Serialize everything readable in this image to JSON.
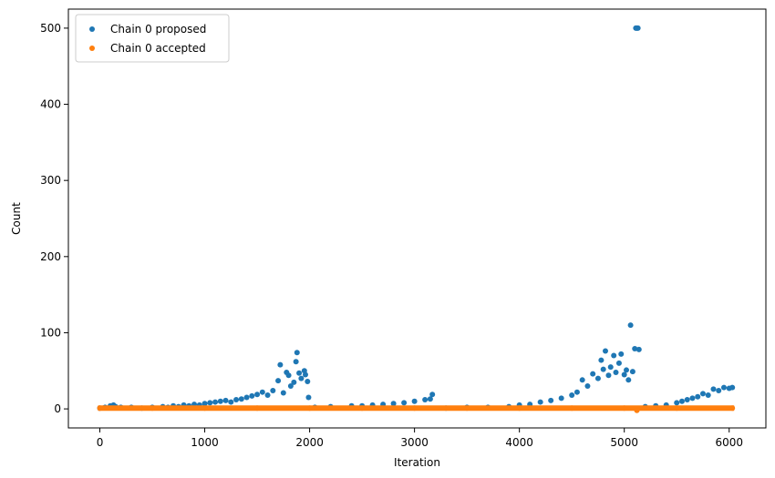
{
  "chart_data": {
    "type": "scatter",
    "xlabel": "Iteration",
    "ylabel": "Count",
    "xlim": [
      -300,
      6350
    ],
    "ylim": [
      -25,
      525
    ],
    "xticks": [
      0,
      1000,
      2000,
      3000,
      4000,
      5000,
      6000
    ],
    "yticks": [
      0,
      100,
      200,
      300,
      400,
      500
    ],
    "grid": false,
    "legend_position": "top-left",
    "series": [
      {
        "name": "Chain 0 proposed",
        "color": "#1f77b4",
        "points": [
          [
            0,
            1
          ],
          [
            50,
            2
          ],
          [
            100,
            4
          ],
          [
            130,
            5
          ],
          [
            150,
            3
          ],
          [
            200,
            2
          ],
          [
            300,
            2
          ],
          [
            400,
            1
          ],
          [
            500,
            2
          ],
          [
            600,
            3
          ],
          [
            650,
            2
          ],
          [
            700,
            4
          ],
          [
            750,
            3
          ],
          [
            800,
            5
          ],
          [
            850,
            4
          ],
          [
            900,
            6
          ],
          [
            950,
            5
          ],
          [
            1000,
            7
          ],
          [
            1050,
            8
          ],
          [
            1100,
            9
          ],
          [
            1150,
            10
          ],
          [
            1200,
            11
          ],
          [
            1250,
            9
          ],
          [
            1300,
            12
          ],
          [
            1350,
            13
          ],
          [
            1400,
            15
          ],
          [
            1450,
            17
          ],
          [
            1500,
            19
          ],
          [
            1550,
            22
          ],
          [
            1600,
            18
          ],
          [
            1650,
            24
          ],
          [
            1700,
            37
          ],
          [
            1720,
            58
          ],
          [
            1750,
            21
          ],
          [
            1780,
            48
          ],
          [
            1800,
            44
          ],
          [
            1820,
            30
          ],
          [
            1850,
            35
          ],
          [
            1870,
            62
          ],
          [
            1880,
            74
          ],
          [
            1900,
            47
          ],
          [
            1920,
            40
          ],
          [
            1950,
            50
          ],
          [
            1960,
            45
          ],
          [
            1980,
            36
          ],
          [
            1990,
            15
          ],
          [
            2050,
            2
          ],
          [
            2200,
            3
          ],
          [
            2400,
            4
          ],
          [
            2500,
            4
          ],
          [
            2600,
            5
          ],
          [
            2700,
            6
          ],
          [
            2800,
            7
          ],
          [
            2900,
            8
          ],
          [
            3000,
            10
          ],
          [
            3100,
            12
          ],
          [
            3150,
            13
          ],
          [
            3170,
            19
          ],
          [
            3300,
            1
          ],
          [
            3500,
            2
          ],
          [
            3700,
            2
          ],
          [
            3900,
            3
          ],
          [
            4000,
            5
          ],
          [
            4100,
            6
          ],
          [
            4200,
            9
          ],
          [
            4300,
            11
          ],
          [
            4400,
            14
          ],
          [
            4500,
            18
          ],
          [
            4550,
            22
          ],
          [
            4600,
            38
          ],
          [
            4650,
            30
          ],
          [
            4700,
            46
          ],
          [
            4750,
            40
          ],
          [
            4780,
            64
          ],
          [
            4800,
            52
          ],
          [
            4820,
            76
          ],
          [
            4850,
            44
          ],
          [
            4870,
            55
          ],
          [
            4900,
            70
          ],
          [
            4920,
            48
          ],
          [
            4950,
            60
          ],
          [
            4970,
            72
          ],
          [
            5000,
            45
          ],
          [
            5020,
            51
          ],
          [
            5040,
            38
          ],
          [
            5060,
            110
          ],
          [
            5080,
            49
          ],
          [
            5100,
            79
          ],
          [
            5110,
            500
          ],
          [
            5120,
            500
          ],
          [
            5130,
            500
          ],
          [
            5140,
            78
          ],
          [
            5200,
            3
          ],
          [
            5300,
            4
          ],
          [
            5400,
            5
          ],
          [
            5500,
            8
          ],
          [
            5550,
            10
          ],
          [
            5600,
            12
          ],
          [
            5650,
            14
          ],
          [
            5700,
            16
          ],
          [
            5750,
            20
          ],
          [
            5800,
            18
          ],
          [
            5850,
            26
          ],
          [
            5900,
            24
          ],
          [
            5950,
            28
          ],
          [
            6000,
            27
          ],
          [
            6030,
            28
          ]
        ]
      },
      {
        "name": "Chain 0 accepted",
        "color": "#ff7f0e",
        "points": [
          [
            0,
            1
          ],
          [
            500,
            1
          ],
          [
            1000,
            1
          ],
          [
            1500,
            1
          ],
          [
            2000,
            1
          ],
          [
            2500,
            1
          ],
          [
            3000,
            1
          ],
          [
            3500,
            1
          ],
          [
            4000,
            1
          ],
          [
            4500,
            1
          ],
          [
            5000,
            1
          ],
          [
            5120,
            -2
          ],
          [
            5500,
            1
          ],
          [
            6030,
            1
          ]
        ]
      }
    ]
  }
}
